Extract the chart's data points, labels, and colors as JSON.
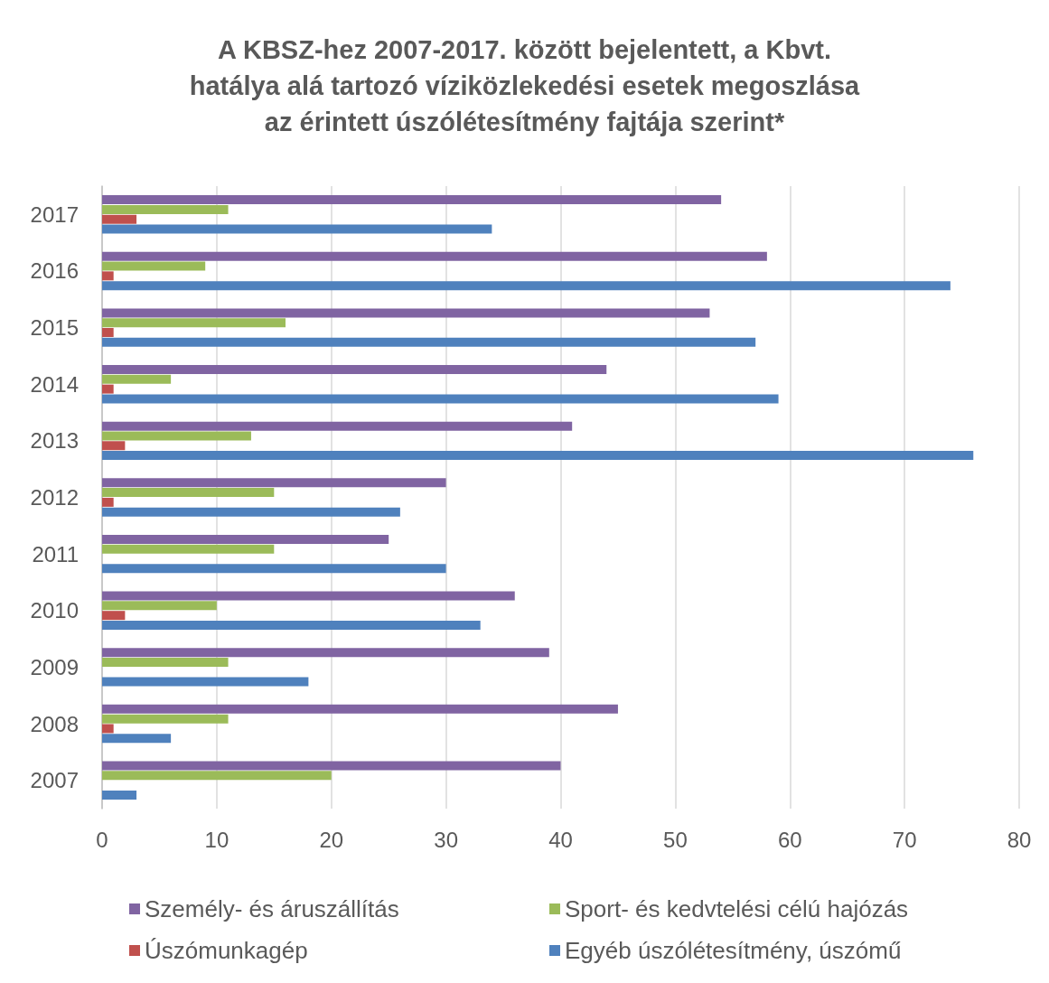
{
  "chart_data": {
    "type": "bar",
    "orientation": "horizontal",
    "title": "A KBSZ-hez 2007-2017. között bejelentett, a Kbvt.\nhatálya alá tartozó víziközlekedési esetek megoszlása\naz érintett úszólétesítmény fajtája szerint*",
    "categories": [
      "2017",
      "2016",
      "2015",
      "2014",
      "2013",
      "2012",
      "2011",
      "2010",
      "2009",
      "2008",
      "2007"
    ],
    "series": [
      {
        "name": "Személy- és áruszállítás",
        "color": "#8064a2",
        "values": [
          54,
          58,
          53,
          44,
          41,
          30,
          25,
          36,
          39,
          45,
          40
        ]
      },
      {
        "name": "Sport- és kedvtelési célú hajózás",
        "color": "#9bbb59",
        "values": [
          11,
          9,
          16,
          6,
          13,
          15,
          15,
          10,
          11,
          11,
          20
        ]
      },
      {
        "name": "Úszómunkagép",
        "color": "#c0504d",
        "values": [
          3,
          1,
          1,
          1,
          2,
          1,
          0,
          2,
          0,
          1,
          0
        ]
      },
      {
        "name": "Egyéb úszólétesítmény, úszómű",
        "color": "#4f81bd",
        "values": [
          34,
          74,
          57,
          59,
          76,
          26,
          30,
          33,
          18,
          6,
          3
        ]
      }
    ],
    "xlim": [
      0,
      80
    ],
    "xticks": [
      0,
      10,
      20,
      30,
      40,
      50,
      60,
      70,
      80
    ],
    "grid": "x",
    "legend": "bottom"
  }
}
